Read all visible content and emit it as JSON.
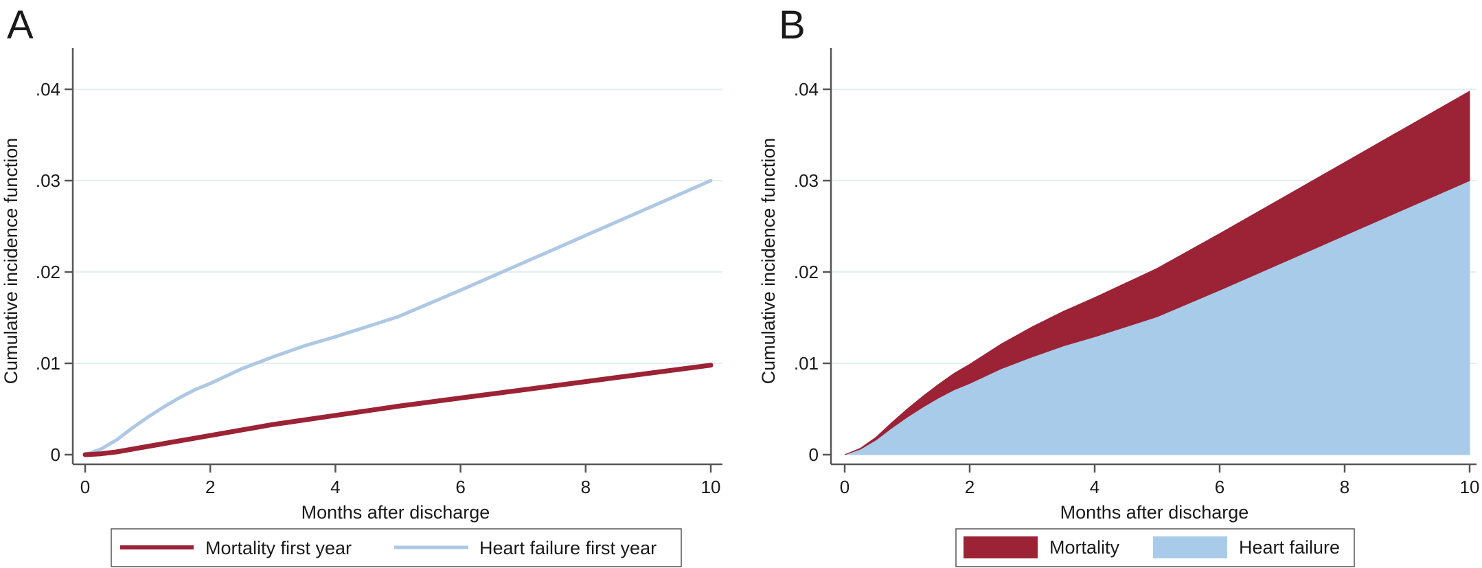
{
  "colors": {
    "mortality": "#9b2335",
    "heart_failure_line": "#aec8e4",
    "heart_failure_fill": "#a9cbea",
    "grid": "#e3eef2",
    "axis": "#555555"
  },
  "chart_data": [
    {
      "panel": "A",
      "type": "line",
      "xlabel": "Months after discharge",
      "ylabel": "Cumulative incidence function",
      "xlim": [
        0,
        10
      ],
      "ylim": [
        0,
        0.04
      ],
      "x_ticks": [
        "0",
        "2",
        "4",
        "6",
        "8",
        "10"
      ],
      "y_ticks": [
        "0",
        ".01",
        ".02",
        ".03",
        ".04"
      ],
      "grid": true,
      "legend_position": "bottom",
      "x": [
        0,
        0.25,
        0.5,
        0.75,
        1,
        1.25,
        1.5,
        1.75,
        2,
        2.5,
        3,
        3.5,
        4,
        4.5,
        5,
        6,
        7,
        8,
        9,
        10
      ],
      "series": [
        {
          "name": "Mortality first year",
          "values": [
            0,
            0.0001,
            0.0003,
            0.0006,
            0.0009,
            0.0012,
            0.0015,
            0.0018,
            0.0021,
            0.0027,
            0.0033,
            0.0038,
            0.0043,
            0.0048,
            0.0053,
            0.0062,
            0.0071,
            0.008,
            0.0089,
            0.0098
          ]
        },
        {
          "name": "Heart failure first year",
          "values": [
            0,
            0.0006,
            0.0016,
            0.0029,
            0.0041,
            0.0052,
            0.0062,
            0.0071,
            0.0078,
            0.0094,
            0.0107,
            0.0119,
            0.0129,
            0.014,
            0.0151,
            0.018,
            0.021,
            0.024,
            0.027,
            0.03
          ]
        }
      ]
    },
    {
      "panel": "B",
      "type": "area",
      "stacked": true,
      "xlabel": "Months after discharge",
      "ylabel": "Cumulative incidence function",
      "xlim": [
        0,
        10
      ],
      "ylim": [
        0,
        0.04
      ],
      "x_ticks": [
        "0",
        "2",
        "4",
        "6",
        "8",
        "10"
      ],
      "y_ticks": [
        "0",
        ".01",
        ".02",
        ".03",
        ".04"
      ],
      "grid": true,
      "legend_position": "bottom",
      "x": [
        0,
        0.25,
        0.5,
        0.75,
        1,
        1.25,
        1.5,
        1.75,
        2,
        2.5,
        3,
        3.5,
        4,
        4.5,
        5,
        6,
        7,
        8,
        9,
        10
      ],
      "series": [
        {
          "name": "Heart failure",
          "values": [
            0,
            0.0006,
            0.0016,
            0.0029,
            0.0041,
            0.0052,
            0.0062,
            0.0071,
            0.0078,
            0.0094,
            0.0107,
            0.0119,
            0.0129,
            0.014,
            0.0151,
            0.018,
            0.021,
            0.024,
            0.027,
            0.03
          ]
        },
        {
          "name": "Mortality",
          "values": [
            0,
            0.0001,
            0.0003,
            0.0006,
            0.0009,
            0.0012,
            0.0015,
            0.0018,
            0.0021,
            0.0027,
            0.0033,
            0.0038,
            0.0043,
            0.0048,
            0.0053,
            0.0062,
            0.0071,
            0.008,
            0.0089,
            0.0098
          ]
        }
      ]
    }
  ]
}
